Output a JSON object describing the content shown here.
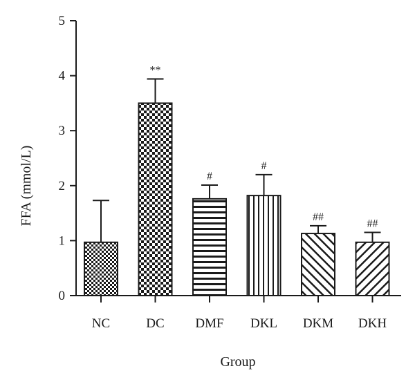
{
  "chart_data": {
    "type": "bar",
    "title": "",
    "xlabel": "Group",
    "ylabel": "FFA (mmol/L)",
    "ylim": [
      0,
      5
    ],
    "yticks": [
      "0",
      "1",
      "2",
      "3",
      "4",
      "5"
    ],
    "grid": false,
    "categories": [
      "NC",
      "DC",
      "DMF",
      "DKL",
      "DKM",
      "DKH"
    ],
    "values": [
      0.97,
      3.5,
      1.76,
      1.82,
      1.13,
      0.97
    ],
    "errors": [
      0.76,
      0.44,
      0.25,
      0.38,
      0.14,
      0.18
    ],
    "annotations": [
      "",
      "**",
      "#",
      "#",
      "##",
      "##"
    ],
    "fill_patterns": [
      "fine-checker",
      "checker",
      "horizontal-lines",
      "vertical-lines",
      "diagonal-lines",
      "diagonal-lines-reverse"
    ],
    "colors": {
      "bar_stroke": "#1a1a1a",
      "fill": "#1a1a1a",
      "background": "#ffffff"
    }
  }
}
